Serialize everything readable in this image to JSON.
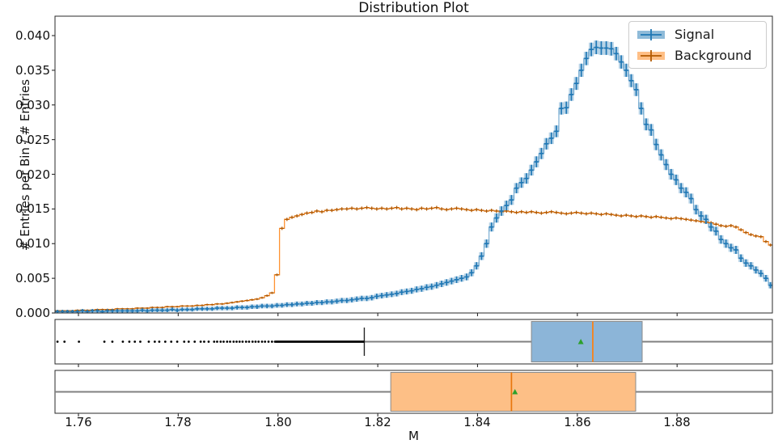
{
  "title": "Distribution Plot",
  "axes": {
    "xlabel": "M",
    "ylabel": "# Entries per Bin / # Entries",
    "xticks": [
      "1.76",
      "1.78",
      "1.80",
      "1.82",
      "1.84",
      "1.86",
      "1.88"
    ],
    "xtick_values": [
      1.76,
      1.78,
      1.8,
      1.82,
      1.84,
      1.86,
      1.88
    ],
    "yticks": [
      "0.000",
      "0.005",
      "0.010",
      "0.015",
      "0.020",
      "0.025",
      "0.030",
      "0.035",
      "0.040"
    ],
    "ytick_values": [
      0.0,
      0.005,
      0.01,
      0.015,
      0.02,
      0.025,
      0.03,
      0.035,
      0.04
    ],
    "xlim": [
      1.7553,
      1.8991
    ],
    "ylim": [
      0,
      0.0428
    ],
    "grid": false
  },
  "legend": {
    "position": "upper right",
    "items": [
      {
        "label": "Signal",
        "patch_color": "#8fbbd9",
        "cross_color": "#1f77b4"
      },
      {
        "label": "Background",
        "patch_color": "#ffbf86",
        "cross_color": "#b25900"
      }
    ]
  },
  "colors": {
    "signal_step": "rgba(31,119,180,0.55)",
    "signal_errbox": "rgba(31,119,180,0.32)",
    "signal_cross": "#1f77b4",
    "background_step": "rgba(255,127,14,0.85)",
    "background_cross": "#b25900",
    "signal_box_fill": "#8cb5d8",
    "background_box_fill": "#fdbf86",
    "median_color": "#ff7f0e",
    "mean_color": "#2ca02c",
    "whisker_color": "#808080",
    "cap_color": "#262626",
    "flier_color": "#000000",
    "spine_color": "#2a2a2a"
  },
  "chart_data": {
    "type": "bar",
    "note": "two step-histograms with per-bin error bars plus two horizontal boxplots sharing the x axis",
    "value_scale": 0.0001,
    "x_start": 1.7553,
    "bin_width": 0.001,
    "series": [
      {
        "name": "Signal",
        "style": "step-histogram-errorbar",
        "values": [
          2,
          2,
          2,
          2,
          2,
          3,
          2,
          3,
          3,
          2,
          3,
          3,
          3,
          3,
          3,
          3,
          3,
          4,
          3,
          4,
          4,
          4,
          4,
          5,
          4,
          5,
          5,
          5,
          6,
          6,
          6,
          6,
          7,
          7,
          7,
          7,
          8,
          8,
          8,
          9,
          9,
          10,
          10,
          10,
          11,
          11,
          12,
          12,
          13,
          13,
          14,
          14,
          15,
          15,
          16,
          16,
          17,
          18,
          18,
          19,
          20,
          21,
          21,
          22,
          24,
          25,
          26,
          27,
          28,
          30,
          31,
          32,
          34,
          35,
          37,
          38,
          40,
          42,
          44,
          46,
          48,
          50,
          52,
          58,
          68,
          82,
          100,
          124,
          137,
          147,
          155,
          163,
          180,
          188,
          194,
          206,
          218,
          230,
          244,
          252,
          262,
          295,
          296,
          315,
          331,
          350,
          367,
          380,
          383,
          382,
          382,
          381,
          374,
          362,
          350,
          335,
          322,
          295,
          272,
          264,
          243,
          228,
          214,
          200,
          192,
          180,
          174,
          165,
          149,
          140,
          135,
          124,
          118,
          106,
          100,
          94,
          91,
          79,
          72,
          68,
          62,
          57,
          50,
          40
        ]
      },
      {
        "name": "Background",
        "style": "step-histogram-errorbar",
        "values": [
          3,
          3,
          3,
          3,
          4,
          4,
          4,
          4,
          5,
          5,
          5,
          5,
          6,
          6,
          6,
          6,
          7,
          7,
          7,
          8,
          8,
          8,
          9,
          9,
          9,
          10,
          10,
          10,
          11,
          11,
          12,
          12,
          13,
          13,
          14,
          15,
          16,
          17,
          18,
          19,
          20,
          22,
          25,
          29,
          55,
          122,
          135,
          138,
          140,
          142,
          144,
          145,
          147,
          146,
          148,
          148,
          149,
          150,
          150,
          151,
          150,
          151,
          152,
          151,
          150,
          151,
          150,
          151,
          152,
          150,
          151,
          150,
          149,
          151,
          150,
          151,
          152,
          150,
          149,
          150,
          151,
          150,
          149,
          148,
          149,
          148,
          147,
          148,
          147,
          146,
          147,
          146,
          145,
          146,
          145,
          146,
          145,
          144,
          145,
          146,
          145,
          144,
          143,
          144,
          145,
          144,
          143,
          144,
          143,
          142,
          143,
          142,
          141,
          140,
          141,
          140,
          139,
          140,
          139,
          138,
          139,
          138,
          137,
          136,
          137,
          136,
          135,
          134,
          133,
          132,
          131,
          130,
          128,
          126,
          125,
          126,
          124,
          120,
          116,
          113,
          111,
          110,
          103,
          98
        ]
      }
    ],
    "boxplots": [
      {
        "name": "Signal",
        "whisker_low": 1.8173,
        "q1": 1.8508,
        "median": 1.8631,
        "mean": 1.8607,
        "q3": 1.873,
        "whisker_high": 1.8991,
        "cap_low": true,
        "cap_high": false,
        "flier_band": [
          1.7995,
          1.8173
        ],
        "fliers": [
          1.7558,
          1.7572,
          1.7601,
          1.7652,
          1.7668,
          1.7689,
          1.7702,
          1.7713,
          1.7724,
          1.7741,
          1.7753,
          1.7762,
          1.7774,
          1.7786,
          1.7798,
          1.7812,
          1.7821,
          1.7833,
          1.7845,
          1.7852,
          1.7861,
          1.7872,
          1.7878,
          1.7885,
          1.7891,
          1.7898,
          1.7904,
          1.7911,
          1.7917,
          1.7923,
          1.7929,
          1.7936,
          1.7942,
          1.7949,
          1.7955,
          1.7961,
          1.7968,
          1.7974,
          1.7981,
          1.7988,
          1.7994
        ]
      },
      {
        "name": "Background",
        "whisker_low": 1.7553,
        "q1": 1.8226,
        "median": 1.8468,
        "mean": 1.8475,
        "q3": 1.8717,
        "whisker_high": 1.8991,
        "cap_low": false,
        "cap_high": false,
        "fliers": []
      }
    ]
  }
}
